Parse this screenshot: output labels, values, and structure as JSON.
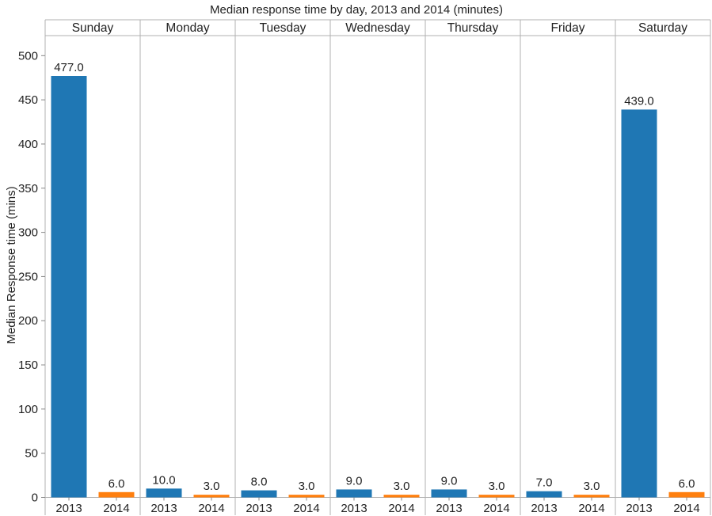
{
  "chart_data": {
    "type": "bar",
    "title": "Median response time by day, 2013 and 2014 (minutes)",
    "ylabel": "Median Response time (mins)",
    "xlabel": "",
    "ylim": [
      0,
      520
    ],
    "yticks": [
      0,
      50,
      100,
      150,
      200,
      250,
      300,
      350,
      400,
      450,
      500
    ],
    "grid": false,
    "days": [
      "Sunday",
      "Monday",
      "Tuesday",
      "Wednesday",
      "Thursday",
      "Friday",
      "Saturday"
    ],
    "years": [
      "2013",
      "2014"
    ],
    "series": [
      {
        "year": "2013",
        "color": "#1f77b4",
        "values": [
          477.0,
          10.0,
          8.0,
          9.0,
          9.0,
          7.0,
          439.0
        ],
        "labels": [
          "477.0",
          "10.0",
          "8.0",
          "9.0",
          "9.0",
          "7.0",
          "439.0"
        ]
      },
      {
        "year": "2014",
        "color": "#ff7f0e",
        "values": [
          6.0,
          3.0,
          3.0,
          3.0,
          3.0,
          3.0,
          6.0
        ],
        "labels": [
          "6.0",
          "3.0",
          "3.0",
          "3.0",
          "3.0",
          "3.0",
          "6.0"
        ]
      }
    ]
  }
}
